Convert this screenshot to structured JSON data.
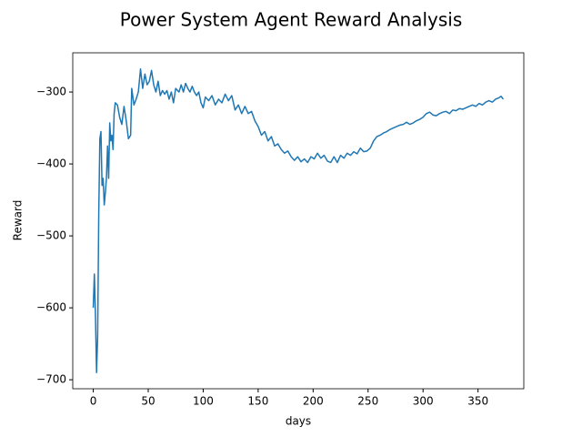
{
  "chart_data": {
    "type": "line",
    "title": "Power System Agent Reward Analysis",
    "xlabel": "days",
    "ylabel": "Reward",
    "color": "#1f77b4",
    "x": [
      0,
      1,
      2,
      3,
      4,
      5,
      6,
      7,
      8,
      9,
      10,
      11,
      12,
      13,
      14,
      15,
      16,
      17,
      18,
      19,
      20,
      22,
      24,
      26,
      28,
      30,
      32,
      34,
      35,
      37,
      39,
      41,
      43,
      45,
      47,
      49,
      51,
      53,
      55,
      57,
      59,
      61,
      63,
      65,
      67,
      69,
      71,
      73,
      75,
      78,
      80,
      82,
      84,
      86,
      88,
      90,
      92,
      94,
      96,
      98,
      100,
      102,
      105,
      108,
      111,
      114,
      117,
      120,
      123,
      126,
      129,
      132,
      135,
      138,
      141,
      144,
      147,
      150,
      153,
      156,
      159,
      162,
      165,
      168,
      171,
      174,
      177,
      180,
      183,
      186,
      189,
      192,
      195,
      198,
      201,
      204,
      207,
      210,
      213,
      216,
      219,
      222,
      225,
      228,
      231,
      234,
      237,
      240,
      243,
      246,
      249,
      252,
      255,
      258,
      261,
      264,
      267,
      270,
      273,
      276,
      279,
      282,
      285,
      288,
      291,
      294,
      297,
      300,
      303,
      306,
      309,
      312,
      315,
      318,
      321,
      324,
      327,
      330,
      333,
      336,
      339,
      342,
      345,
      348,
      351,
      354,
      357,
      360,
      363,
      366,
      369,
      371,
      373
    ],
    "values": [
      -600,
      -553,
      -610,
      -690,
      -640,
      -470,
      -365,
      -355,
      -430,
      -420,
      -457,
      -440,
      -420,
      -375,
      -420,
      -343,
      -368,
      -360,
      -380,
      -330,
      -315,
      -318,
      -335,
      -345,
      -320,
      -340,
      -365,
      -360,
      -295,
      -318,
      -310,
      -300,
      -268,
      -295,
      -275,
      -290,
      -285,
      -270,
      -290,
      -300,
      -285,
      -305,
      -298,
      -303,
      -298,
      -310,
      -300,
      -315,
      -295,
      -300,
      -290,
      -300,
      -288,
      -295,
      -300,
      -292,
      -300,
      -305,
      -300,
      -315,
      -322,
      -307,
      -312,
      -305,
      -318,
      -310,
      -315,
      -303,
      -312,
      -305,
      -325,
      -318,
      -330,
      -320,
      -330,
      -327,
      -340,
      -348,
      -360,
      -355,
      -368,
      -362,
      -375,
      -372,
      -380,
      -385,
      -382,
      -390,
      -395,
      -390,
      -397,
      -393,
      -398,
      -390,
      -393,
      -385,
      -392,
      -388,
      -396,
      -398,
      -390,
      -398,
      -388,
      -392,
      -385,
      -388,
      -383,
      -386,
      -378,
      -383,
      -382,
      -378,
      -368,
      -362,
      -360,
      -357,
      -355,
      -352,
      -350,
      -348,
      -346,
      -345,
      -342,
      -345,
      -343,
      -340,
      -338,
      -335,
      -330,
      -328,
      -332,
      -333,
      -330,
      -328,
      -327,
      -330,
      -325,
      -326,
      -323,
      -324,
      -322,
      -320,
      -318,
      -320,
      -316,
      -318,
      -314,
      -312,
      -314,
      -310,
      -308,
      -306,
      -310
    ],
    "xlim": [
      -18.65,
      391.65
    ],
    "ylim": [
      -712.5,
      -245.5
    ],
    "xticks": [
      0,
      50,
      100,
      150,
      200,
      250,
      300,
      350
    ],
    "yticks": [
      {
        "value": -700,
        "label": "−700"
      },
      {
        "value": -600,
        "label": "−600"
      },
      {
        "value": -500,
        "label": "−500"
      },
      {
        "value": -400,
        "label": "−400"
      },
      {
        "value": -300,
        "label": "−300"
      }
    ]
  }
}
